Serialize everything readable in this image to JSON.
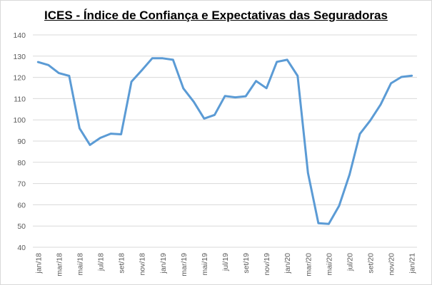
{
  "chart_data": {
    "type": "line",
    "title": "ICES - Índice de Confiança e Expectativas das Seguradoras",
    "xlabel": "",
    "ylabel": "",
    "ylim": [
      40,
      140
    ],
    "yticks": [
      40,
      50,
      60,
      70,
      80,
      90,
      100,
      110,
      120,
      130,
      140
    ],
    "grid": true,
    "legend": "none",
    "color": "#5b9bd5",
    "x": [
      "jan/18",
      "fev/18",
      "mar/18",
      "abr/18",
      "mai/18",
      "jun/18",
      "jul/18",
      "ago/18",
      "set/18",
      "out/18",
      "nov/18",
      "dez/18",
      "jan/19",
      "fev/19",
      "mar/19",
      "abr/19",
      "mai/19",
      "jun/19",
      "jul/19",
      "ago/19",
      "set/19",
      "out/19",
      "nov/19",
      "dez/19",
      "jan/20",
      "fev/20",
      "mar/20",
      "abr/20",
      "mai/20",
      "jun/20",
      "jul/20",
      "ago/20",
      "set/20",
      "out/20",
      "nov/20",
      "dez/20",
      "jan/21"
    ],
    "x_tick_labels": [
      "jan/18",
      "mar/18",
      "mai/18",
      "jul/18",
      "set/18",
      "nov/18",
      "jan/19",
      "mar/19",
      "mai/19",
      "jul/19",
      "set/19",
      "nov/19",
      "jan/20",
      "mar/20",
      "mai/20",
      "jul/20",
      "set/20",
      "nov/20",
      "jan/21"
    ],
    "series": [
      {
        "values": [
          127.2,
          125.8,
          122.0,
          120.7,
          96.0,
          88.2,
          91.5,
          93.5,
          93.2,
          118.0,
          123.4,
          129.0,
          129.0,
          128.3,
          114.8,
          108.5,
          100.6,
          102.3,
          111.2,
          110.6,
          111.1,
          118.3,
          114.9,
          127.3,
          128.3,
          120.7,
          75.0,
          51.3,
          51.0,
          59.5,
          74.2,
          93.4,
          99.7,
          107.2,
          117.2,
          120.2,
          120.8
        ]
      }
    ]
  }
}
